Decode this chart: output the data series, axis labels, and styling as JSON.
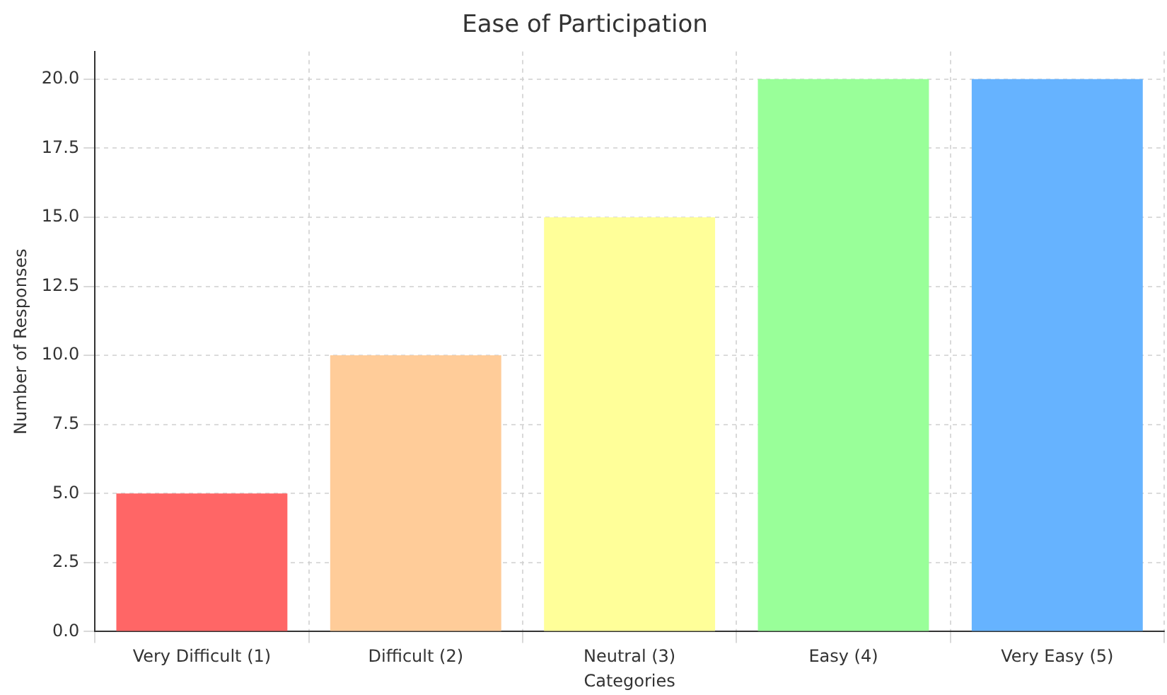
{
  "chart_data": {
    "type": "bar",
    "title": "Ease of Participation",
    "xlabel": "Categories",
    "ylabel": "Number of Responses",
    "categories": [
      "Very Difficult (1)",
      "Difficult (2)",
      "Neutral (3)",
      "Easy (4)",
      "Very Easy (5)"
    ],
    "values": [
      5,
      10,
      15,
      20,
      20
    ],
    "colors": [
      "#ff6666",
      "#ffcc99",
      "#ffff99",
      "#99ff99",
      "#66b3ff"
    ],
    "ylim": [
      0,
      21
    ],
    "yticks": [
      {
        "value": 0,
        "label": "0.0"
      },
      {
        "value": 2.5,
        "label": "2.5"
      },
      {
        "value": 5,
        "label": "5.0"
      },
      {
        "value": 7.5,
        "label": "7.5"
      },
      {
        "value": 10,
        "label": "10.0"
      },
      {
        "value": 12.5,
        "label": "12.5"
      },
      {
        "value": 15,
        "label": "15.0"
      },
      {
        "value": 17.5,
        "label": "17.5"
      },
      {
        "value": 20,
        "label": "20.0"
      }
    ],
    "grid": true
  }
}
